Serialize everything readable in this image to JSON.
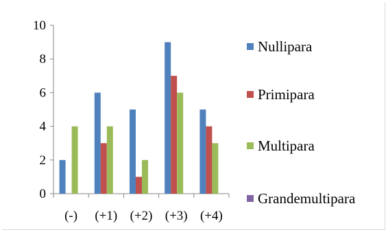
{
  "chart_data": {
    "type": "bar",
    "categories": [
      "(-)",
      "(+1)",
      "(+2)",
      "(+3)",
      "(+4)"
    ],
    "series": [
      {
        "name": "Nullipara",
        "color": "#4f81bd",
        "values": [
          2,
          6,
          5,
          9,
          5
        ]
      },
      {
        "name": "Primipara",
        "color": "#c0504d",
        "values": [
          0,
          3,
          1,
          7,
          4
        ]
      },
      {
        "name": "Multipara",
        "color": "#9bbb59",
        "values": [
          4,
          4,
          2,
          6,
          3
        ]
      },
      {
        "name": "Grandemultipara",
        "color": "#8064a2",
        "values": [
          0,
          0,
          0,
          0,
          0
        ]
      }
    ],
    "ylim": [
      0,
      10
    ],
    "yticks": [
      0,
      2,
      4,
      6,
      8,
      10
    ],
    "grid": false,
    "legend": "right",
    "title": "",
    "xlabel": "",
    "ylabel": ""
  }
}
